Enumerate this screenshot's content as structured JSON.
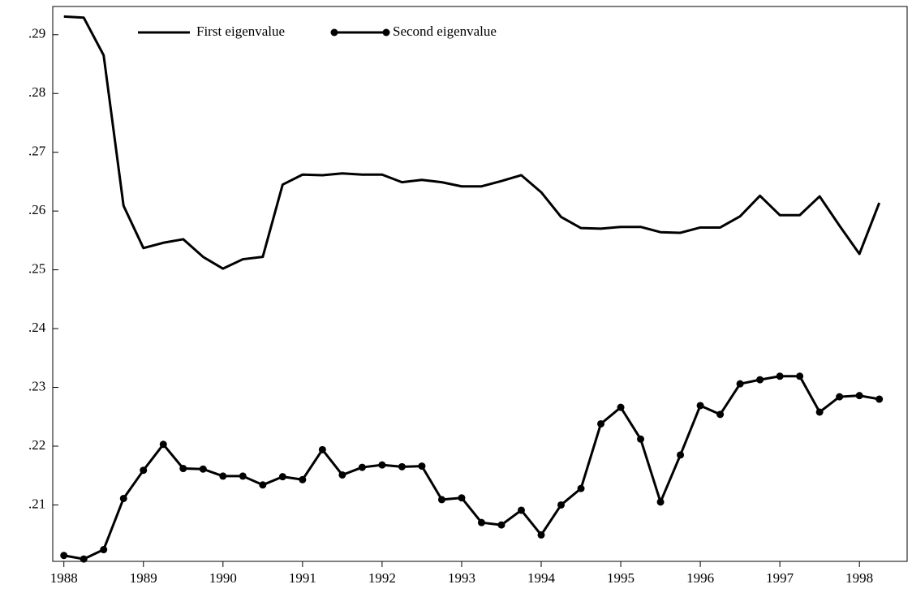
{
  "chart_data": {
    "type": "line",
    "x": [
      1988,
      1988.25,
      1988.5,
      1988.75,
      1989,
      1989.25,
      1989.5,
      1989.75,
      1990,
      1990.25,
      1990.5,
      1990.75,
      1991,
      1991.25,
      1991.5,
      1991.75,
      1992,
      1992.25,
      1992.5,
      1992.75,
      1993,
      1993.25,
      1993.5,
      1993.75,
      1994,
      1994.25,
      1994.5,
      1994.75,
      1995,
      1995.25,
      1995.5,
      1995.75,
      1996,
      1996.25,
      1996.5,
      1996.75,
      1997,
      1997.25,
      1997.5,
      1997.75,
      1998,
      1998.25
    ],
    "series": [
      {
        "name": "First eigenvalue",
        "color": "#000000",
        "marker": "none",
        "values": [
          0.2931,
          0.2929,
          0.2865,
          0.2609,
          0.2537,
          0.2546,
          0.2552,
          0.2522,
          0.2502,
          0.2518,
          0.2522,
          0.2645,
          0.2662,
          0.2661,
          0.2664,
          0.2662,
          0.2662,
          0.2649,
          0.2653,
          0.2649,
          0.2642,
          0.2642,
          0.2651,
          0.2661,
          0.2632,
          0.259,
          0.2571,
          0.257,
          0.2573,
          0.2573,
          0.2564,
          0.2563,
          0.2572,
          0.2572,
          0.2591,
          0.2626,
          0.2593,
          0.2593,
          0.2625,
          0.2575,
          0.2527,
          0.2614
        ]
      },
      {
        "name": "Second eigenvalue",
        "color": "#000000",
        "marker": "circle",
        "values": [
          0.2014,
          0.2008,
          0.2024,
          0.2111,
          0.2159,
          0.2203,
          0.2162,
          0.2161,
          0.2149,
          0.2149,
          0.2134,
          0.2148,
          0.2143,
          0.2194,
          0.2151,
          0.2164,
          0.2168,
          0.2165,
          0.2166,
          0.2109,
          0.2112,
          0.207,
          0.2066,
          0.2091,
          0.2049,
          0.21,
          0.2128,
          0.2238,
          0.2266,
          0.2212,
          0.2105,
          0.2185,
          0.2269,
          0.2254,
          0.2306,
          0.2313,
          0.2319,
          0.2319,
          0.2258,
          0.2284,
          0.2286,
          0.228
        ]
      }
    ],
    "xlim": [
      1987.86,
      1998.6
    ],
    "xticks": [
      1988,
      1989,
      1990,
      1991,
      1992,
      1993,
      1994,
      1995,
      1996,
      1997,
      1998
    ],
    "ylim": [
      0.2004,
      0.2948
    ],
    "yticks": [
      {
        "value": 0.21,
        "label": ".21"
      },
      {
        "value": 0.22,
        "label": ".22"
      },
      {
        "value": 0.23,
        "label": ".23"
      },
      {
        "value": 0.24,
        "label": ".24"
      },
      {
        "value": 0.25,
        "label": ".25"
      },
      {
        "value": 0.26,
        "label": ".26"
      },
      {
        "value": 0.27,
        "label": ".27"
      },
      {
        "value": 0.28,
        "label": ".28"
      },
      {
        "value": 0.29,
        "label": ".29"
      }
    ],
    "grid": false
  }
}
